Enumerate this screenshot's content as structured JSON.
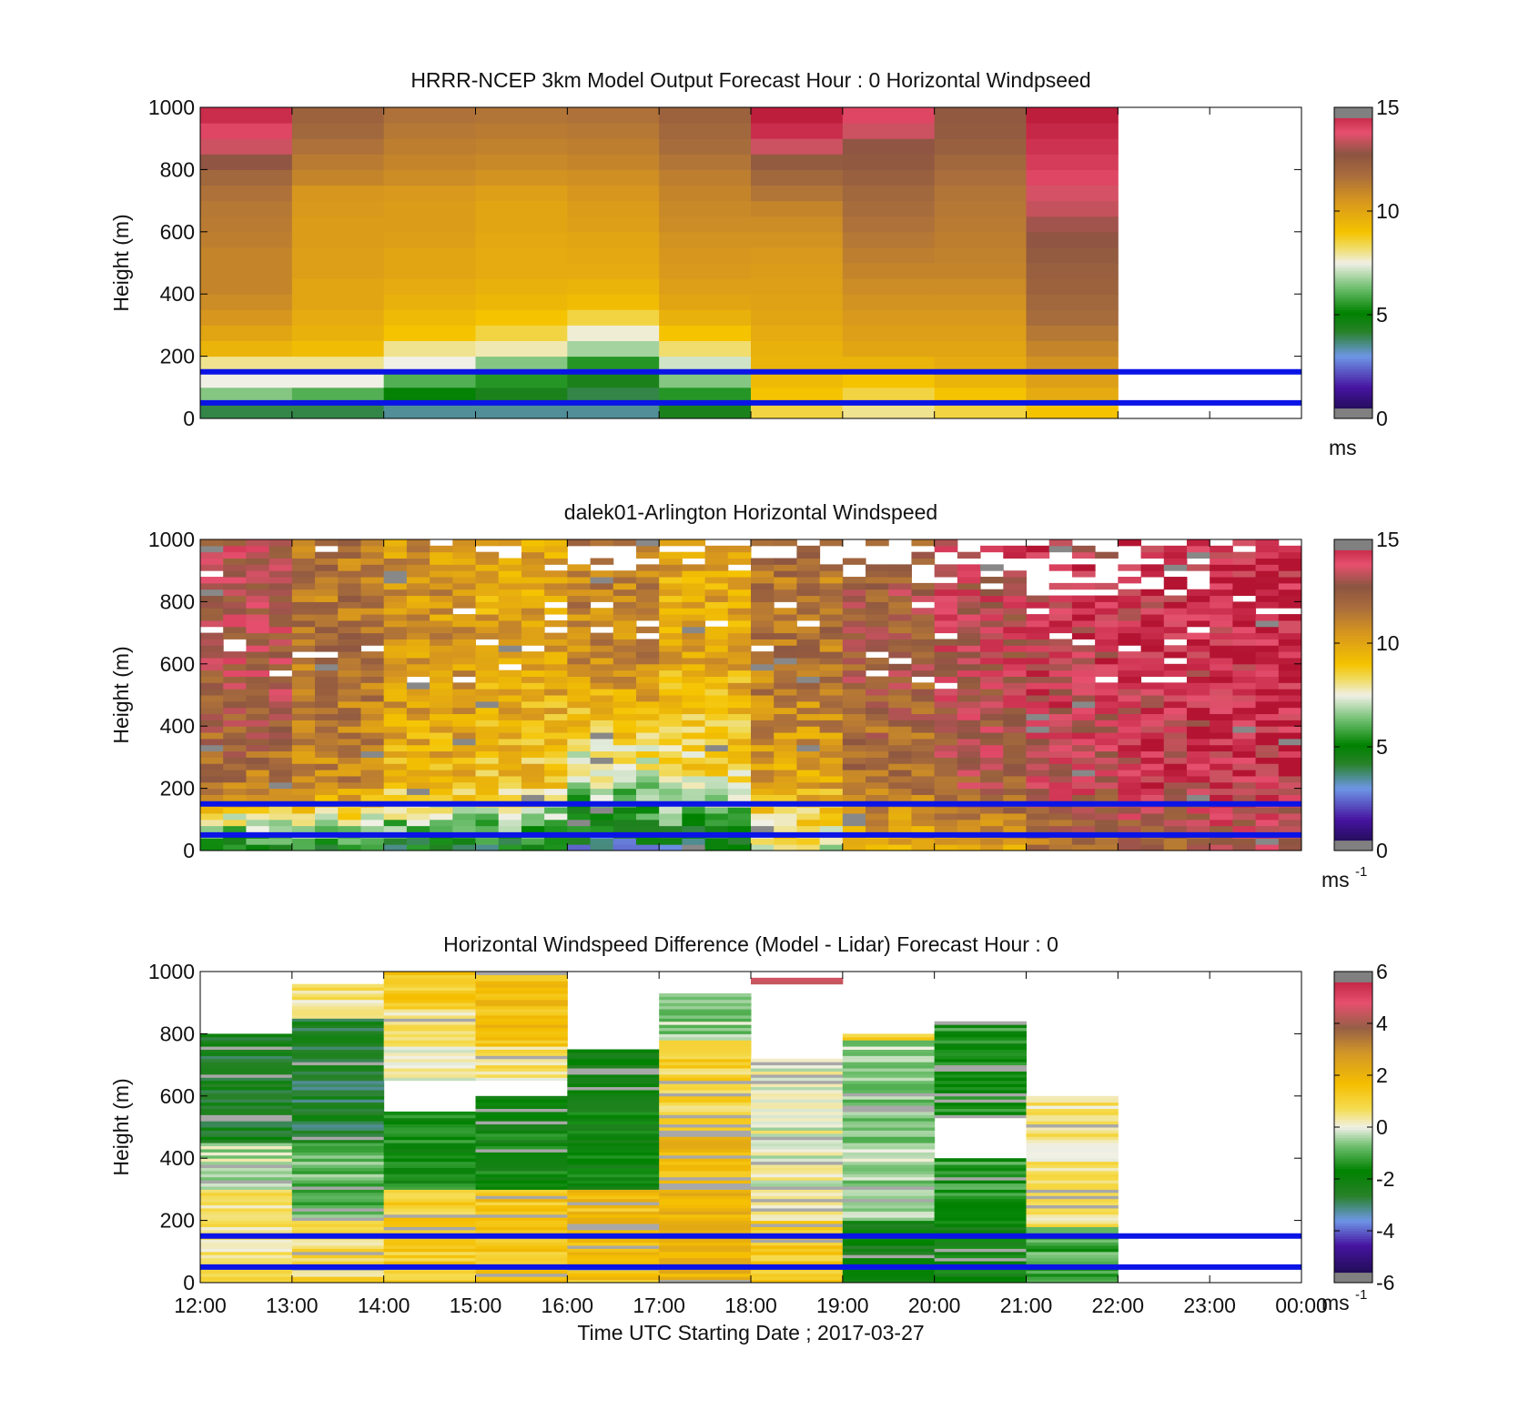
{
  "figure": {
    "xlabel": "Time UTC  Starting Date ; 2017-03-27",
    "x_ticks": [
      "12:00",
      "13:00",
      "14:00",
      "15:00",
      "16:00",
      "17:00",
      "18:00",
      "19:00",
      "20:00",
      "21:00",
      "22:00",
      "23:00",
      "00:00"
    ]
  },
  "colors": {
    "reference_lines": "#0a14e6",
    "missing_data": "#ffffff"
  },
  "chart_data": [
    {
      "id": "model",
      "type": "heatmap",
      "title": "HRRR-NCEP 3km Model Output   Forecast Hour : 0 Horizontal Windpseed",
      "xlabel": "",
      "ylabel": "Height (m)",
      "x_range": [
        "12:00",
        "00:00"
      ],
      "ylim": [
        0,
        1000
      ],
      "y_ticks": [
        "0",
        "200",
        "400",
        "600",
        "800",
        "1000"
      ],
      "colorbar": {
        "ticks": [
          "0",
          "5",
          "10",
          "15"
        ],
        "unit": "ms",
        "unit_sup": "",
        "range": [
          0,
          15
        ]
      },
      "reference_lines_m": [
        50,
        150
      ],
      "data_end_hour": "22:00",
      "heights_m": [
        25,
        75,
        125,
        175,
        225,
        275,
        325,
        375,
        425,
        475,
        525,
        575,
        625,
        675,
        725,
        775,
        825,
        875,
        925,
        975
      ],
      "columns": [
        {
          "time": "12:00",
          "values": [
            4.0,
            6.5,
            7.5,
            8.0,
            9.5,
            10.0,
            10.5,
            10.8,
            11.0,
            11.0,
            11.0,
            11.2,
            11.3,
            11.4,
            11.6,
            12.0,
            12.8,
            13.5,
            14.0,
            14.5
          ]
        },
        {
          "time": "13:00",
          "values": [
            4.0,
            6.0,
            7.5,
            8.0,
            9.2,
            9.6,
            9.8,
            10.0,
            10.0,
            10.2,
            10.2,
            10.3,
            10.3,
            10.4,
            10.5,
            11.0,
            11.3,
            11.6,
            12.0,
            12.2
          ]
        },
        {
          "time": "14:00",
          "values": [
            3.5,
            5.0,
            6.0,
            7.5,
            8.0,
            9.0,
            9.3,
            9.6,
            9.8,
            10.0,
            10.0,
            10.2,
            10.3,
            10.3,
            10.4,
            10.8,
            11.0,
            11.2,
            11.4,
            11.6
          ]
        },
        {
          "time": "15:00",
          "values": [
            3.5,
            4.5,
            5.5,
            6.5,
            7.8,
            8.5,
            9.0,
            9.4,
            9.6,
            9.8,
            9.8,
            9.9,
            10.0,
            10.0,
            10.2,
            10.6,
            10.9,
            11.1,
            11.3,
            11.5
          ]
        },
        {
          "time": "16:00",
          "values": [
            3.5,
            4.0,
            4.5,
            5.5,
            6.8,
            7.6,
            8.5,
            9.2,
            9.5,
            9.8,
            9.9,
            10.0,
            10.2,
            10.3,
            10.5,
            10.7,
            11.0,
            11.2,
            11.4,
            11.6
          ]
        },
        {
          "time": "17:00",
          "values": [
            4.5,
            5.5,
            6.5,
            7.2,
            8.2,
            9.0,
            9.6,
            10.0,
            10.2,
            10.4,
            10.5,
            10.6,
            10.8,
            10.9,
            11.0,
            11.2,
            11.5,
            11.8,
            12.0,
            12.2
          ]
        },
        {
          "time": "18:00",
          "values": [
            8.5,
            9.0,
            9.3,
            9.5,
            9.6,
            9.8,
            10.0,
            10.1,
            10.2,
            10.3,
            10.4,
            10.6,
            10.8,
            11.0,
            11.5,
            12.0,
            12.5,
            13.5,
            14.5,
            14.8
          ]
        },
        {
          "time": "19:00",
          "values": [
            8.0,
            8.5,
            9.0,
            9.5,
            10.0,
            10.2,
            10.4,
            10.6,
            10.8,
            11.0,
            11.2,
            11.4,
            11.6,
            11.8,
            12.0,
            12.3,
            12.6,
            12.8,
            13.5,
            14.0
          ]
        },
        {
          "time": "20:00",
          "values": [
            8.5,
            9.0,
            9.5,
            9.8,
            10.0,
            10.2,
            10.4,
            10.6,
            10.8,
            11.0,
            11.1,
            11.2,
            11.3,
            11.4,
            11.5,
            11.7,
            12.0,
            12.3,
            12.5,
            12.6
          ]
        },
        {
          "time": "21:00",
          "values": [
            9.0,
            9.8,
            10.2,
            10.6,
            11.0,
            11.4,
            11.8,
            12.0,
            12.2,
            12.3,
            12.5,
            12.8,
            13.0,
            13.4,
            13.6,
            14.0,
            14.2,
            14.4,
            14.6,
            14.8
          ]
        }
      ]
    },
    {
      "id": "lidar",
      "type": "heatmap",
      "title": "dalek01-Arlington  Horizontal Windspeed",
      "xlabel": "",
      "ylabel": "Height (m)",
      "x_range": [
        "12:00",
        "00:00"
      ],
      "ylim": [
        0,
        1000
      ],
      "y_ticks": [
        "0",
        "200",
        "400",
        "600",
        "800",
        "1000"
      ],
      "colorbar": {
        "ticks": [
          "0",
          "5",
          "10",
          "15"
        ],
        "unit": "ms",
        "unit_sup": "-1",
        "range": [
          0,
          15
        ]
      },
      "reference_lines_m": [
        50,
        150
      ],
      "data_end_hour": "00:00",
      "time_step_minutes": 15,
      "height_bin_m": 20,
      "hourly_profile": [
        {
          "time": "12:00",
          "low": 4.5,
          "mid": 11.5,
          "high": 13.0,
          "missing_above_m": 1000
        },
        {
          "time": "13:00",
          "low": 5.0,
          "mid": 11.0,
          "high": 11.5,
          "missing_above_m": 1000
        },
        {
          "time": "14:00",
          "low": 4.5,
          "mid": 9.5,
          "high": 10.5,
          "missing_above_m": 1000
        },
        {
          "time": "15:00",
          "low": 4.5,
          "mid": 9.0,
          "high": 10.0,
          "missing_above_m": 1000
        },
        {
          "time": "16:00",
          "low": 3.5,
          "mid": 7.0,
          "high": 11.0,
          "missing_above_m": 900
        },
        {
          "time": "17:00",
          "low": 4.0,
          "mid": 8.0,
          "high": 10.0,
          "missing_above_m": 950
        },
        {
          "time": "18:00",
          "low": 7.5,
          "mid": 10.0,
          "high": 11.5,
          "missing_above_m": 900
        },
        {
          "time": "19:00",
          "low": 9.5,
          "mid": 11.5,
          "high": 12.5,
          "missing_above_m": 850
        },
        {
          "time": "20:00",
          "low": 10.5,
          "mid": 12.5,
          "high": 13.5,
          "missing_above_m": 850
        },
        {
          "time": "21:00",
          "low": 11.5,
          "mid": 13.5,
          "high": 14.0,
          "missing_above_m": 800
        },
        {
          "time": "22:00",
          "low": 12.0,
          "mid": 14.0,
          "high": 14.2,
          "missing_above_m": 800
        },
        {
          "time": "23:00",
          "low": 13.0,
          "mid": 14.2,
          "high": 14.5,
          "missing_above_m": 950
        }
      ]
    },
    {
      "id": "difference",
      "type": "heatmap",
      "title": "Horizontal Windspeed Difference (Model - Lidar) Forecast Hour : 0",
      "xlabel": "Time UTC  Starting Date ; 2017-03-27",
      "ylabel": "Height (m)",
      "x_range": [
        "12:00",
        "00:00"
      ],
      "ylim": [
        0,
        1000
      ],
      "y_ticks": [
        "0",
        "200",
        "400",
        "600",
        "800",
        "1000"
      ],
      "colorbar": {
        "ticks": [
          "-6",
          "-4",
          "-2",
          "0",
          "2",
          "4",
          "6"
        ],
        "unit": "ms",
        "unit_sup": "-1",
        "range": [
          -6,
          6
        ]
      },
      "reference_lines_m": [
        50,
        150
      ],
      "data_end_hour": "22:00",
      "height_bin_m": 10,
      "hourly_profile": [
        {
          "time": "12:00",
          "segments": [
            [
              0,
              300,
              0.6
            ],
            [
              300,
              450,
              -0.3
            ],
            [
              450,
              800,
              -2.4
            ]
          ],
          "top_m": 800
        },
        {
          "time": "13:00",
          "segments": [
            [
              0,
              200,
              0.8
            ],
            [
              200,
              450,
              -0.8
            ],
            [
              450,
              850,
              -2.6
            ],
            [
              850,
              960,
              0.6
            ]
          ],
          "top_m": 960
        },
        {
          "time": "14:00",
          "segments": [
            [
              0,
              300,
              1.2
            ],
            [
              300,
              550,
              -1.6
            ],
            [
              650,
              880,
              0.3
            ],
            [
              880,
              1000,
              1.3
            ]
          ],
          "top_m": 1000
        },
        {
          "time": "15:00",
          "segments": [
            [
              0,
              300,
              1.4
            ],
            [
              300,
              600,
              -1.8
            ],
            [
              650,
              760,
              0.5
            ],
            [
              760,
              1000,
              1.6
            ]
          ],
          "top_m": 1000
        },
        {
          "time": "16:00",
          "segments": [
            [
              0,
              300,
              1.6
            ],
            [
              300,
              750,
              -1.9
            ]
          ],
          "top_m": 750
        },
        {
          "time": "17:00",
          "segments": [
            [
              0,
              500,
              1.8
            ],
            [
              500,
              780,
              1.0
            ],
            [
              780,
              930,
              -0.5
            ]
          ],
          "top_m": 930
        },
        {
          "time": "18:00",
          "segments": [
            [
              0,
              200,
              1.2
            ],
            [
              200,
              720,
              0.1
            ],
            [
              960,
              980,
              4.5
            ]
          ],
          "top_m": 980
        },
        {
          "time": "19:00",
          "segments": [
            [
              0,
              200,
              -2.2
            ],
            [
              200,
              780,
              -0.5
            ],
            [
              780,
              800,
              1.0
            ]
          ],
          "top_m": 800
        },
        {
          "time": "20:00",
          "segments": [
            [
              0,
              200,
              -2.0
            ],
            [
              200,
              400,
              -1.3
            ],
            [
              530,
              840,
              -1.4
            ]
          ],
          "top_m": 840
        },
        {
          "time": "21:00",
          "segments": [
            [
              0,
              180,
              -1.0
            ],
            [
              180,
              600,
              0.5
            ]
          ],
          "top_m": 640
        }
      ]
    }
  ]
}
